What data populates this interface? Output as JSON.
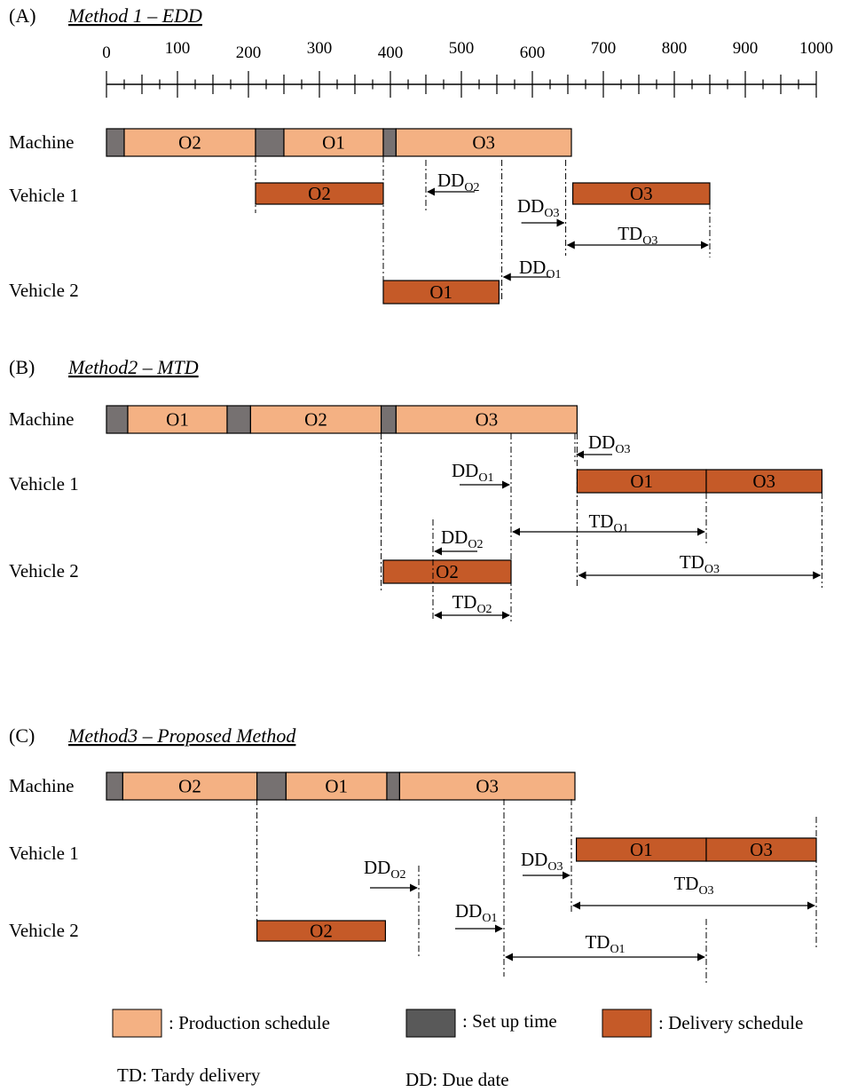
{
  "axis": {
    "ticks": [
      "0",
      "100",
      "200",
      "300",
      "400",
      "500",
      "600",
      "700",
      "800",
      "900",
      "1000"
    ]
  },
  "row_labels": {
    "machine": "Machine",
    "vehicle1": "Vehicle  1",
    "vehicle2": "Vehicle  2"
  },
  "panels": [
    {
      "id": "A",
      "letter": "(A)",
      "title": "Method 1 – EDD",
      "bars": [
        {
          "type": "setup",
          "lane": "machine",
          "t0": 0,
          "t1": 25,
          "label": ""
        },
        {
          "type": "production",
          "lane": "machine",
          "t0": 25,
          "t1": 210,
          "label": "O2"
        },
        {
          "type": "setup",
          "lane": "machine",
          "t0": 210,
          "t1": 250,
          "label": ""
        },
        {
          "type": "production",
          "lane": "machine",
          "t0": 250,
          "t1": 390,
          "label": "O1"
        },
        {
          "type": "setup",
          "lane": "machine",
          "t0": 390,
          "t1": 408,
          "label": ""
        },
        {
          "type": "production",
          "lane": "machine",
          "t0": 408,
          "t1": 655,
          "label": "O3"
        },
        {
          "type": "delivery",
          "lane": "vehicle1",
          "t0": 210,
          "t1": 390,
          "label": "O2"
        },
        {
          "type": "delivery",
          "lane": "vehicle1",
          "t0": 657,
          "t1": 850,
          "label": "O3"
        },
        {
          "type": "delivery",
          "lane": "vehicle2",
          "t0": 390,
          "t1": 553,
          "label": "O1"
        }
      ],
      "dd": [
        {
          "order": "O2",
          "t": 450,
          "dir": "left",
          "y_from": 180,
          "y_to": 240,
          "ay": 216,
          "len": 55,
          "lx": 493,
          "ly": 210
        },
        {
          "order": "O3",
          "t": 647,
          "dir": "right",
          "y_from": 180,
          "y_to": 288,
          "ay": 251,
          "len": 50,
          "lx": 583,
          "ly": 239
        },
        {
          "order": "O1",
          "t": 557,
          "dir": "left",
          "y_from": 180,
          "y_to": 340,
          "ay": 312,
          "len": 55,
          "lx": 585,
          "ly": 308
        }
      ],
      "td": [
        {
          "order": "TD",
          "sub": "O3",
          "t0": 647,
          "t1": 850,
          "ay": 276,
          "ly": 270
        }
      ],
      "guides": [
        {
          "t": 210,
          "y0": 176,
          "y1": 240
        },
        {
          "t": 390,
          "y0": 176,
          "y1": 340
        },
        {
          "t": 850,
          "y0": 229,
          "y1": 290
        }
      ]
    },
    {
      "id": "B",
      "letter": "(B)",
      "title": "Method2 – MTD",
      "bars": [
        {
          "type": "setup",
          "lane": "machine",
          "t0": 0,
          "t1": 30,
          "label": ""
        },
        {
          "type": "production",
          "lane": "machine",
          "t0": 30,
          "t1": 170,
          "label": "O1"
        },
        {
          "type": "setup",
          "lane": "machine",
          "t0": 170,
          "t1": 203,
          "label": ""
        },
        {
          "type": "production",
          "lane": "machine",
          "t0": 203,
          "t1": 387,
          "label": "O2"
        },
        {
          "type": "setup",
          "lane": "machine",
          "t0": 387,
          "t1": 408,
          "label": ""
        },
        {
          "type": "production",
          "lane": "machine",
          "t0": 408,
          "t1": 663,
          "label": "O3"
        },
        {
          "type": "delivery",
          "lane": "vehicle1",
          "t0": 663,
          "t1": 845,
          "label": "O1"
        },
        {
          "type": "delivery",
          "lane": "vehicle1",
          "t0": 845,
          "t1": 1008,
          "label": "O3"
        },
        {
          "type": "delivery",
          "lane": "vehicle2",
          "t0": 390,
          "t1": 570,
          "label": "O2"
        }
      ],
      "dd": [
        {
          "order": "O3",
          "t": 660,
          "dir": "left",
          "y_from": 488,
          "y_to": 520,
          "ay": 512,
          "len": 42,
          "lx": 663,
          "ly": 505
        },
        {
          "order": "O1",
          "t": 570,
          "dir": "right",
          "y_from": 488,
          "y_to": 700,
          "ay": 546,
          "len": 58,
          "lx": 509,
          "ly": 537
        },
        {
          "order": "O2",
          "t": 460,
          "dir": "left",
          "y_from": 585,
          "y_to": 700,
          "ay": 621,
          "len": 50,
          "lx": 497,
          "ly": 612
        }
      ],
      "td": [
        {
          "order": "TD",
          "sub": "O1",
          "t0": 570,
          "t1": 845,
          "ay": 599,
          "ly": 594
        },
        {
          "order": "TD",
          "sub": "O3",
          "t0": 663,
          "t1": 1008,
          "ay": 648,
          "ly": 640
        },
        {
          "order": "TD",
          "sub": "O2",
          "t0": 460,
          "t1": 570,
          "ay": 693,
          "ly": 685
        }
      ],
      "guides": [
        {
          "t": 387,
          "y0": 488,
          "y1": 668
        },
        {
          "t": 663,
          "y0": 488,
          "y1": 660
        },
        {
          "t": 845,
          "y0": 555,
          "y1": 612
        },
        {
          "t": 1008,
          "y0": 555,
          "y1": 662
        }
      ]
    },
    {
      "id": "C",
      "letter": "(C)",
      "title": "Method3 – Proposed Method",
      "bars": [
        {
          "type": "setup",
          "lane": "machine",
          "t0": 0,
          "t1": 23,
          "label": ""
        },
        {
          "type": "production",
          "lane": "machine",
          "t0": 23,
          "t1": 212,
          "label": "O2"
        },
        {
          "type": "setup",
          "lane": "machine",
          "t0": 212,
          "t1": 253,
          "label": ""
        },
        {
          "type": "production",
          "lane": "machine",
          "t0": 253,
          "t1": 395,
          "label": "O1"
        },
        {
          "type": "setup",
          "lane": "machine",
          "t0": 395,
          "t1": 413,
          "label": ""
        },
        {
          "type": "production",
          "lane": "machine",
          "t0": 413,
          "t1": 660,
          "label": "O3"
        },
        {
          "type": "delivery",
          "lane": "vehicle1",
          "t0": 662,
          "t1": 845,
          "label": "O1"
        },
        {
          "type": "delivery",
          "lane": "vehicle1",
          "t0": 845,
          "t1": 1000,
          "label": "O3"
        },
        {
          "type": "delivery",
          "lane": "vehicle2",
          "t0": 212,
          "t1": 393,
          "label": "O2"
        }
      ],
      "dd": [
        {
          "order": "O2",
          "t": 440,
          "dir": "right",
          "y_from": 975,
          "y_to": 1080,
          "ay": 1000,
          "len": 55,
          "lx": 410,
          "ly": 984
        },
        {
          "order": "O3",
          "t": 655,
          "dir": "right",
          "y_from": 900,
          "y_to": 1030,
          "ay": 986,
          "len": 55,
          "lx": 587,
          "ly": 975
        },
        {
          "order": "O1",
          "t": 560,
          "dir": "right",
          "y_from": 900,
          "y_to": 1100,
          "ay": 1046,
          "len": 55,
          "lx": 513,
          "ly": 1033
        }
      ],
      "td": [
        {
          "order": "TD",
          "sub": "O3",
          "t0": 655,
          "t1": 1000,
          "ay": 1020,
          "ly": 1002
        },
        {
          "order": "TD",
          "sub": "O1",
          "t0": 560,
          "t1": 845,
          "ay": 1078,
          "ly": 1068
        }
      ],
      "guides": [
        {
          "t": 212,
          "y0": 900,
          "y1": 1060
        },
        {
          "t": 845,
          "y0": 1035,
          "y1": 1107
        },
        {
          "t": 1000,
          "y0": 920,
          "y1": 1070
        }
      ]
    }
  ],
  "legend": {
    "production": ": Production  schedule",
    "setup": ": Set up time",
    "delivery": ": Delivery  schedule",
    "td_note": "TD:  Tardy delivery",
    "dd_note": "DD: Due date"
  },
  "colors": {
    "production": "#f4b183",
    "setup": "#767171",
    "delivery": "#c55a28",
    "stroke": "#000000"
  }
}
